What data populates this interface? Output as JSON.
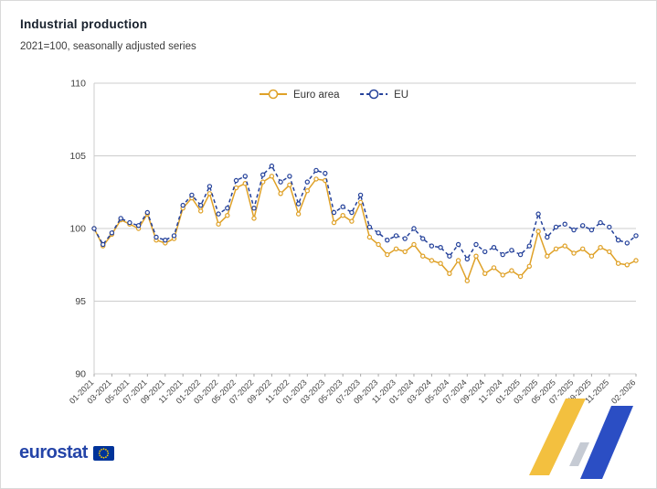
{
  "header": {
    "title": "Industrial production",
    "subtitle": "2021=100, seasonally adjusted series"
  },
  "footer": {
    "logo_text": "eurostat"
  },
  "palette": {
    "euro_area": "#DFA127",
    "eu": "#24419A",
    "grid": "#CCCCCC",
    "axis_text": "#404040",
    "flag_blue": "#003399",
    "star_yellow": "#FFCC00",
    "deco_yellow": "#F3C03F",
    "deco_gray": "#C6CBD4",
    "deco_blue": "#2B4EC4"
  },
  "chart_data": {
    "type": "line",
    "title": "Industrial production",
    "subtitle": "2021=100, seasonally adjusted series",
    "grid": "horizontal",
    "legend_position": "top-center",
    "ylim": [
      90,
      110
    ],
    "y_ticks": [
      90,
      95,
      100,
      105,
      110
    ],
    "n_points": 62,
    "x_start": "01-2021",
    "x_end": "02-2026",
    "x_tick_labels": [
      "01-2021",
      "03-2021",
      "05-2021",
      "07-2021",
      "09-2021",
      "11-2021",
      "01-2022",
      "03-2022",
      "05-2022",
      "07-2022",
      "09-2022",
      "11-2022",
      "01-2023",
      "03-2023",
      "05-2023",
      "07-2023",
      "09-2023",
      "11-2023",
      "01-2024",
      "03-2024",
      "05-2024",
      "07-2024",
      "09-2024",
      "11-2024",
      "01-2025",
      "03-2025",
      "05-2025",
      "07-2025",
      "09-2025",
      "11-2025",
      "02-2026"
    ],
    "x_tick_indices": [
      0,
      2,
      4,
      6,
      8,
      10,
      12,
      14,
      16,
      18,
      20,
      22,
      24,
      26,
      28,
      30,
      32,
      34,
      36,
      38,
      40,
      42,
      44,
      46,
      48,
      50,
      52,
      54,
      56,
      58,
      61
    ],
    "series": [
      {
        "name": "Euro area",
        "color": "#DFA127",
        "marker": "circle",
        "dash": null,
        "values": [
          100.0,
          98.8,
          99.6,
          100.6,
          100.3,
          100.0,
          101.0,
          99.2,
          99.0,
          99.3,
          101.4,
          102.1,
          101.2,
          102.4,
          100.3,
          100.9,
          102.8,
          103.1,
          100.7,
          103.2,
          103.6,
          102.4,
          103.0,
          101.0,
          102.6,
          103.4,
          103.3,
          100.4,
          100.9,
          100.5,
          101.8,
          99.4,
          98.9,
          98.2,
          98.6,
          98.4,
          98.9,
          98.1,
          97.8,
          97.6,
          96.9,
          97.8,
          96.4,
          98.1,
          96.9,
          97.3,
          96.8,
          97.1,
          96.7,
          97.4,
          99.8,
          98.1,
          98.6,
          98.8,
          98.3,
          98.6,
          98.1,
          98.7,
          98.4,
          97.6,
          97.5,
          97.8
        ]
      },
      {
        "name": "EU",
        "color": "#24419A",
        "marker": "circle",
        "dash": "4 3",
        "values": [
          100.0,
          98.9,
          99.7,
          100.7,
          100.4,
          100.2,
          101.1,
          99.4,
          99.2,
          99.5,
          101.6,
          102.3,
          101.6,
          102.9,
          101.0,
          101.4,
          103.3,
          103.6,
          101.4,
          103.7,
          104.3,
          103.2,
          103.6,
          101.7,
          103.2,
          104.0,
          103.8,
          101.1,
          101.5,
          101.1,
          102.3,
          100.1,
          99.7,
          99.2,
          99.5,
          99.3,
          100.0,
          99.3,
          98.8,
          98.7,
          98.1,
          98.9,
          97.9,
          98.9,
          98.4,
          98.7,
          98.2,
          98.5,
          98.2,
          98.8,
          101.0,
          99.4,
          100.1,
          100.3,
          99.9,
          100.2,
          99.9,
          100.4,
          100.1,
          99.2,
          99.0,
          99.5
        ]
      }
    ]
  }
}
